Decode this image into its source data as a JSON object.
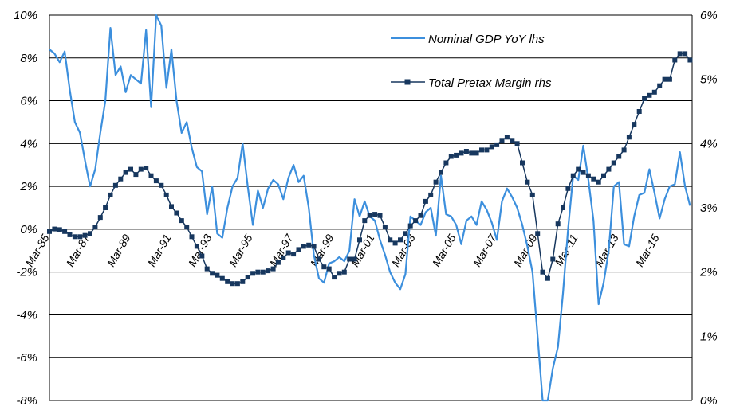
{
  "chart_data": {
    "type": "line",
    "title": "",
    "y_left": {
      "ylim": [
        -8,
        10
      ],
      "ticks": [
        -8,
        -6,
        -4,
        -2,
        0,
        2,
        4,
        6,
        8,
        10
      ],
      "tick_labels": [
        "-8%",
        "-6%",
        "-4%",
        "-2%",
        "0%",
        "2%",
        "4%",
        "6%",
        "8%",
        "10%"
      ]
    },
    "y_right": {
      "ylim": [
        0,
        6
      ],
      "ticks": [
        0,
        1,
        2,
        3,
        4,
        5,
        6
      ],
      "tick_labels": [
        "0%",
        "1%",
        "2%",
        "3%",
        "4%",
        "5%",
        "6%"
      ]
    },
    "x_range": [
      1985,
      2016.6
    ],
    "x_ticks": [
      {
        "x": 1985,
        "label": "Mar-85"
      },
      {
        "x": 1987,
        "label": "Mar-87"
      },
      {
        "x": 1989,
        "label": "Mar-89"
      },
      {
        "x": 1991,
        "label": "Mar-91"
      },
      {
        "x": 1993,
        "label": "Mar-93"
      },
      {
        "x": 1995,
        "label": "Mar-95"
      },
      {
        "x": 1997,
        "label": "Mar-97"
      },
      {
        "x": 1999,
        "label": "Mar-99"
      },
      {
        "x": 2001,
        "label": "Mar-01"
      },
      {
        "x": 2003,
        "label": "Mar-03"
      },
      {
        "x": 2005,
        "label": "Mar-05"
      },
      {
        "x": 2007,
        "label": "Mar-07"
      },
      {
        "x": 2009,
        "label": "Mar-09"
      },
      {
        "x": 2011,
        "label": "Mar-11"
      },
      {
        "x": 2013,
        "label": "Mar-13"
      },
      {
        "x": 2015,
        "label": "Mar-15"
      }
    ],
    "grid": true,
    "legend_position": "top-right",
    "series": [
      {
        "name": "Nominal GDP YoY lhs",
        "axis": "left",
        "color": "#3c8fdd",
        "marker": "none",
        "x": [
          1985.0,
          1985.25,
          1985.5,
          1985.75,
          1986.0,
          1986.25,
          1986.5,
          1986.75,
          1987.0,
          1987.25,
          1987.5,
          1987.75,
          1988.0,
          1988.25,
          1988.5,
          1988.75,
          1989.0,
          1989.25,
          1989.5,
          1989.75,
          1990.0,
          1990.25,
          1990.5,
          1990.75,
          1991.0,
          1991.25,
          1991.5,
          1991.75,
          1992.0,
          1992.25,
          1992.5,
          1992.75,
          1993.0,
          1993.25,
          1993.5,
          1993.75,
          1994.0,
          1994.25,
          1994.5,
          1994.75,
          1995.0,
          1995.25,
          1995.5,
          1995.75,
          1996.0,
          1996.25,
          1996.5,
          1996.75,
          1997.0,
          1997.25,
          1997.5,
          1997.75,
          1998.0,
          1998.25,
          1998.5,
          1998.75,
          1999.0,
          1999.25,
          1999.5,
          1999.75,
          2000.0,
          2000.25,
          2000.5,
          2000.75,
          2001.0,
          2001.25,
          2001.5,
          2001.75,
          2002.0,
          2002.25,
          2002.5,
          2002.75,
          2003.0,
          2003.25,
          2003.5,
          2003.75,
          2004.0,
          2004.25,
          2004.5,
          2004.75,
          2005.0,
          2005.25,
          2005.5,
          2005.75,
          2006.0,
          2006.25,
          2006.5,
          2006.75,
          2007.0,
          2007.25,
          2007.5,
          2007.75,
          2008.0,
          2008.25,
          2008.5,
          2008.75,
          2009.0,
          2009.25,
          2009.5,
          2009.75,
          2010.0,
          2010.25,
          2010.5,
          2010.75,
          2011.0,
          2011.25,
          2011.5,
          2011.75,
          2012.0,
          2012.25,
          2012.5,
          2012.75,
          2013.0,
          2013.25,
          2013.5,
          2013.75,
          2014.0,
          2014.25,
          2014.5,
          2014.75,
          2015.0,
          2015.25,
          2015.5,
          2015.75,
          2016.0,
          2016.25,
          2016.5
        ],
        "y": [
          8.4,
          8.2,
          7.8,
          8.3,
          6.5,
          5.0,
          4.5,
          3.2,
          2.0,
          2.8,
          4.5,
          6.0,
          9.4,
          7.2,
          7.6,
          6.4,
          7.2,
          7.0,
          6.8,
          9.3,
          5.7,
          10.0,
          9.5,
          6.6,
          8.4,
          6.0,
          4.5,
          5.0,
          3.8,
          2.9,
          2.7,
          0.7,
          2.0,
          -0.2,
          -0.4,
          1.0,
          2.0,
          2.4,
          4.0,
          2.0,
          0.2,
          1.8,
          1.0,
          1.9,
          2.3,
          2.1,
          1.4,
          2.4,
          3.0,
          2.2,
          2.5,
          1.0,
          -1.2,
          -2.3,
          -2.5,
          -1.6,
          -1.5,
          -1.3,
          -1.5,
          -1.0,
          1.4,
          0.6,
          1.3,
          0.6,
          0.4,
          -0.5,
          -1.2,
          -2.0,
          -2.5,
          -2.8,
          -2.1,
          0.6,
          0.4,
          0.2,
          0.8,
          1.0,
          -0.3,
          2.5,
          0.7,
          0.6,
          0.2,
          -0.7,
          0.4,
          0.6,
          0.2,
          1.3,
          0.9,
          0.3,
          -0.5,
          1.3,
          1.9,
          1.5,
          1.0,
          0.2,
          -0.8,
          -2.0,
          -5.0,
          -8.0,
          -8.0,
          -6.5,
          -5.5,
          -3.0,
          0.0,
          2.5,
          2.3,
          3.9,
          2.3,
          0.4,
          -3.5,
          -2.5,
          -1.0,
          2.0,
          2.2,
          -0.7,
          -0.8,
          0.6,
          1.6,
          1.7,
          2.8,
          1.7,
          0.5,
          1.4,
          2.0,
          2.1,
          3.6,
          2.0,
          1.1
        ]
      },
      {
        "name": "Total Pretax Margin rhs",
        "axis": "right",
        "color": "#17375e",
        "marker": "square",
        "x": [
          1985.0,
          1985.25,
          1985.5,
          1985.75,
          1986.0,
          1986.25,
          1986.5,
          1986.75,
          1987.0,
          1987.25,
          1987.5,
          1987.75,
          1988.0,
          1988.25,
          1988.5,
          1988.75,
          1989.0,
          1989.25,
          1989.5,
          1989.75,
          1990.0,
          1990.25,
          1990.5,
          1990.75,
          1991.0,
          1991.25,
          1991.5,
          1991.75,
          1992.0,
          1992.25,
          1992.5,
          1992.75,
          1993.0,
          1993.25,
          1993.5,
          1993.75,
          1994.0,
          1994.25,
          1994.5,
          1994.75,
          1995.0,
          1995.25,
          1995.5,
          1995.75,
          1996.0,
          1996.25,
          1996.5,
          1996.75,
          1997.0,
          1997.25,
          1997.5,
          1997.75,
          1998.0,
          1998.25,
          1998.5,
          1998.75,
          1999.0,
          1999.25,
          1999.5,
          1999.75,
          2000.0,
          2000.25,
          2000.5,
          2000.75,
          2001.0,
          2001.25,
          2001.5,
          2001.75,
          2002.0,
          2002.25,
          2002.5,
          2002.75,
          2003.0,
          2003.25,
          2003.5,
          2003.75,
          2004.0,
          2004.25,
          2004.5,
          2004.75,
          2005.0,
          2005.25,
          2005.5,
          2005.75,
          2006.0,
          2006.25,
          2006.5,
          2006.75,
          2007.0,
          2007.25,
          2007.5,
          2007.75,
          2008.0,
          2008.25,
          2008.5,
          2008.75,
          2009.0,
          2009.25,
          2009.5,
          2009.75,
          2010.0,
          2010.25,
          2010.5,
          2010.75,
          2011.0,
          2011.25,
          2011.5,
          2011.75,
          2012.0,
          2012.25,
          2012.5,
          2012.75,
          2013.0,
          2013.25,
          2013.5,
          2013.75,
          2014.0,
          2014.25,
          2014.5,
          2014.75,
          2015.0,
          2015.25,
          2015.5,
          2015.75,
          2016.0,
          2016.25,
          2016.5
        ],
        "y": [
          2.63,
          2.67,
          2.66,
          2.63,
          2.58,
          2.55,
          2.55,
          2.57,
          2.6,
          2.7,
          2.85,
          3.0,
          3.2,
          3.35,
          3.45,
          3.55,
          3.6,
          3.52,
          3.6,
          3.62,
          3.5,
          3.42,
          3.35,
          3.2,
          3.02,
          2.92,
          2.8,
          2.7,
          2.55,
          2.4,
          2.25,
          2.05,
          1.98,
          1.95,
          1.9,
          1.85,
          1.82,
          1.82,
          1.85,
          1.92,
          1.98,
          2.0,
          2.0,
          2.02,
          2.05,
          2.15,
          2.22,
          2.3,
          2.28,
          2.35,
          2.4,
          2.42,
          2.4,
          2.2,
          2.08,
          2.05,
          1.92,
          1.98,
          2.0,
          2.2,
          2.2,
          2.5,
          2.8,
          2.88,
          2.9,
          2.88,
          2.7,
          2.5,
          2.45,
          2.5,
          2.6,
          2.72,
          2.8,
          2.88,
          3.1,
          3.2,
          3.4,
          3.55,
          3.7,
          3.8,
          3.82,
          3.85,
          3.88,
          3.85,
          3.85,
          3.9,
          3.9,
          3.95,
          3.98,
          4.05,
          4.1,
          4.05,
          4.0,
          3.7,
          3.4,
          3.2,
          2.6,
          2.0,
          1.9,
          2.2,
          2.75,
          3.0,
          3.3,
          3.5,
          3.6,
          3.55,
          3.5,
          3.45,
          3.4,
          3.5,
          3.6,
          3.7,
          3.8,
          3.9,
          4.1,
          4.3,
          4.5,
          4.7,
          4.75,
          4.8,
          4.9,
          5.0,
          5.0,
          5.3,
          5.4,
          5.4,
          5.3
        ]
      }
    ]
  },
  "legend": {
    "items": [
      {
        "label": "Nominal GDP YoY lhs"
      },
      {
        "label": "Total Pretax Margin rhs"
      }
    ]
  }
}
